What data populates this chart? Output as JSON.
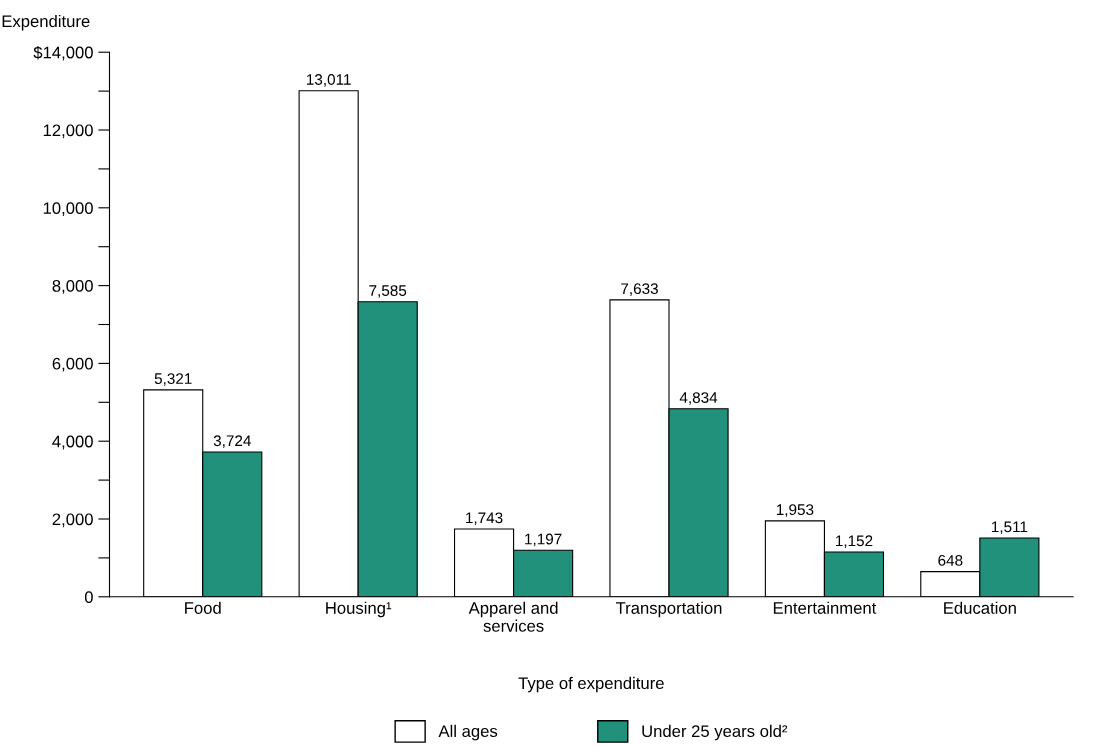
{
  "chart_data": {
    "type": "bar",
    "ylabel": "Expenditure",
    "xlabel": "Type of expenditure",
    "categories": [
      "Food",
      "Housing¹",
      "Apparel and\nservices",
      "Transportation",
      "Entertainment",
      "Education"
    ],
    "series": [
      {
        "name": "All ages",
        "color": "#ffffff",
        "values": [
          5321,
          13011,
          1743,
          7633,
          1953,
          648
        ],
        "value_labels": [
          "5,321",
          "13,011",
          "1,743",
          "7,633",
          "1,953",
          "648"
        ]
      },
      {
        "name": "Under 25 years old²",
        "color": "#21917c",
        "values": [
          3724,
          7585,
          1197,
          4834,
          1152,
          1511
        ],
        "value_labels": [
          "3,724",
          "7,585",
          "1,197",
          "4,834",
          "1,152",
          "1,511"
        ]
      }
    ],
    "ylim": [
      0,
      14000
    ],
    "yticks": [
      0,
      {
        "value": 1000,
        "label": null
      },
      {
        "value": 2000,
        "label": "2,000"
      },
      {
        "value": 3000,
        "label": null
      },
      {
        "value": 4000,
        "label": "4,000"
      },
      {
        "value": 5000,
        "label": null
      },
      {
        "value": 6000,
        "label": "6,000"
      },
      {
        "value": 7000,
        "label": null
      },
      {
        "value": 8000,
        "label": "8,000"
      },
      {
        "value": 9000,
        "label": null
      },
      {
        "value": 10000,
        "label": "10,000"
      },
      {
        "value": 11000,
        "label": null
      },
      {
        "value": 12000,
        "label": "12,000"
      },
      {
        "value": 13000,
        "label": null
      },
      {
        "value": 14000,
        "label": "$14,000"
      }
    ],
    "grid": false,
    "legend": "bottom"
  }
}
